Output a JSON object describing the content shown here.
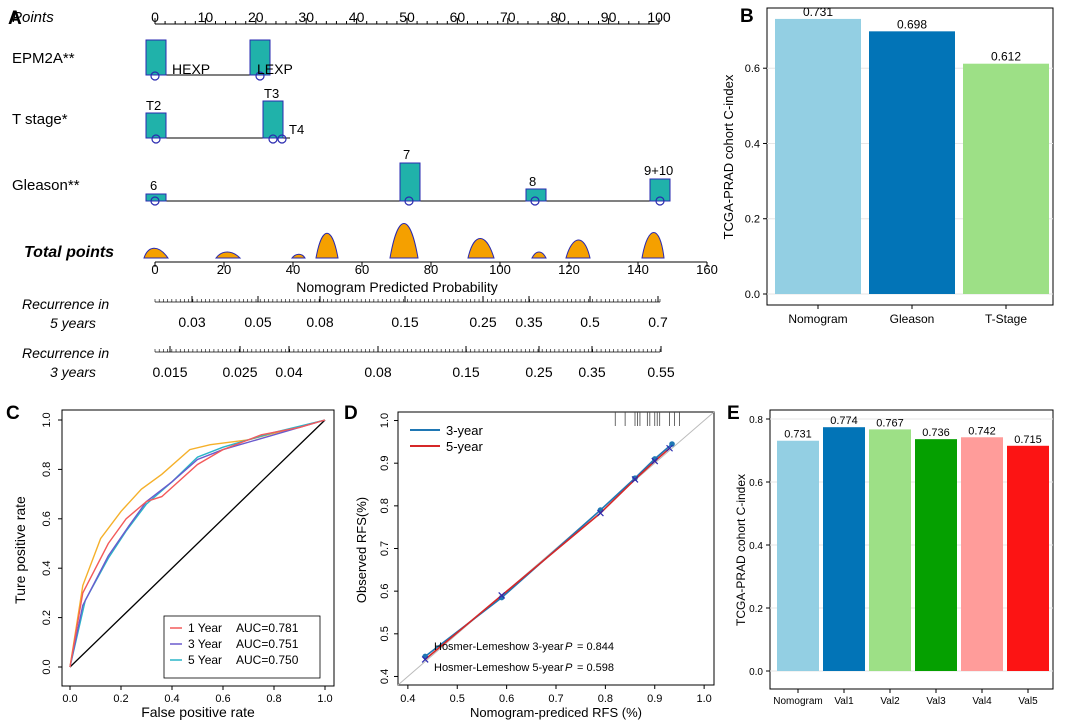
{
  "panel_labels": {
    "a": "A",
    "b": "B",
    "c": "C",
    "d": "D",
    "e": "E"
  },
  "colors": {
    "teal": "#20b2aa",
    "navy": "#2a2ab0",
    "orange": "#f5a000",
    "light_blue": "#93cfe3",
    "blue": "#0274b7",
    "light_green": "#9de086",
    "green": "#05a000",
    "pink": "#ff9c9a",
    "red": "#fc1414",
    "roc_1y": "#f35a5a",
    "roc_3y": "#6a5acd",
    "roc_5y": "#2ab5c8",
    "roc_orange": "#f5b02a",
    "cal_3y": "#1f77b4",
    "cal_5y": "#d62728"
  },
  "nomogram": {
    "points_label": "Points",
    "points_ticks": [
      "0",
      "10",
      "20",
      "30",
      "40",
      "50",
      "60",
      "70",
      "80",
      "90",
      "100"
    ],
    "epm2a": {
      "label": "EPM2A**",
      "levels": [
        "HEXP",
        "LEXP"
      ]
    },
    "tstage": {
      "label": "T stage*",
      "levels": [
        "T2",
        "T3",
        "T4"
      ]
    },
    "gleason": {
      "label": "Gleason**",
      "levels": [
        "6",
        "7",
        "8",
        "9+10"
      ]
    },
    "total_label": "Total points",
    "total_ticks": [
      "0",
      "20",
      "40",
      "60",
      "80",
      "100",
      "120",
      "140",
      "160"
    ],
    "prob_label": "Nomogram Predicted Probability",
    "rec5": {
      "label_line1": "Recurrence in",
      "label_line2": "5 years",
      "ticks": [
        "0.03",
        "0.05",
        "0.08",
        "0.15",
        "0.25",
        "0.35",
        "0.5",
        "0.7"
      ]
    },
    "rec3": {
      "label_line1": "Recurrence in",
      "label_line2": "3 years",
      "ticks": [
        "0.015",
        "0.025",
        "0.04",
        "0.08",
        "0.15",
        "0.25",
        "0.35",
        "0.55"
      ]
    }
  },
  "chart_data": [
    {
      "panel": "A",
      "type": "nomogram",
      "variables": [
        {
          "name": "EPM2A**",
          "levels": [
            {
              "level": "HEXP",
              "points": 0
            },
            {
              "level": "LEXP",
              "points": 21
            }
          ]
        },
        {
          "name": "T stage*",
          "levels": [
            {
              "level": "T2",
              "points": 0
            },
            {
              "level": "T3",
              "points": 23
            },
            {
              "level": "T4",
              "points": 25
            }
          ]
        },
        {
          "name": "Gleason**",
          "levels": [
            {
              "level": "6",
              "points": 0
            },
            {
              "level": "7",
              "points": 50
            },
            {
              "level": "8",
              "points": 75
            },
            {
              "level": "9+10",
              "points": 100
            }
          ]
        }
      ],
      "points_range": [
        0,
        100
      ],
      "total_points_range": [
        0,
        160
      ]
    },
    {
      "panel": "B",
      "type": "bar",
      "categories": [
        "Nomogram",
        "Gleason",
        "T-Stage"
      ],
      "values": [
        0.731,
        0.698,
        0.612
      ],
      "value_labels": [
        "0.731",
        "0.698",
        "0.612"
      ],
      "ylabel": "TCGA-PRAD cohort C-index",
      "yticks": [
        "0.0",
        "0.2",
        "0.4",
        "0.6"
      ],
      "ylim": [
        0,
        0.76
      ]
    },
    {
      "panel": "C",
      "type": "line",
      "xlabel": "False positive rate",
      "ylabel": "Ture positive rate",
      "ticks": [
        "0.0",
        "0.2",
        "0.4",
        "0.6",
        "0.8",
        "1.0"
      ],
      "series": [
        {
          "name": "1 Year",
          "auc": "AUC=0.781",
          "points": [
            [
              0,
              0
            ],
            [
              0.05,
              0.3
            ],
            [
              0.15,
              0.5
            ],
            [
              0.22,
              0.6
            ],
            [
              0.3,
              0.67
            ],
            [
              0.36,
              0.69
            ],
            [
              0.5,
              0.82
            ],
            [
              0.6,
              0.88
            ],
            [
              0.75,
              0.94
            ],
            [
              0.9,
              0.97
            ],
            [
              1,
              1
            ]
          ]
        },
        {
          "name": "3 Year",
          "auc": "AUC=0.751",
          "points": [
            [
              0,
              0
            ],
            [
              0.05,
              0.25
            ],
            [
              0.15,
              0.45
            ],
            [
              0.23,
              0.57
            ],
            [
              0.3,
              0.67
            ],
            [
              0.4,
              0.75
            ],
            [
              0.5,
              0.84
            ],
            [
              0.6,
              0.88
            ],
            [
              0.8,
              0.94
            ],
            [
              1,
              1
            ]
          ]
        },
        {
          "name": "5 Year",
          "auc": "AUC=0.750",
          "points": [
            [
              0,
              0
            ],
            [
              0.06,
              0.27
            ],
            [
              0.15,
              0.44
            ],
            [
              0.22,
              0.55
            ],
            [
              0.3,
              0.66
            ],
            [
              0.4,
              0.75
            ],
            [
              0.5,
              0.85
            ],
            [
              0.6,
              0.89
            ],
            [
              0.8,
              0.95
            ],
            [
              1,
              1
            ]
          ]
        },
        {
          "name": "",
          "auc": "",
          "points": [
            [
              0,
              0
            ],
            [
              0.05,
              0.33
            ],
            [
              0.12,
              0.52
            ],
            [
              0.2,
              0.63
            ],
            [
              0.28,
              0.72
            ],
            [
              0.36,
              0.78
            ],
            [
              0.47,
              0.88
            ],
            [
              0.55,
              0.9
            ],
            [
              0.7,
              0.92
            ],
            [
              0.85,
              0.96
            ],
            [
              1,
              1
            ]
          ]
        }
      ],
      "legend_entries": [
        {
          "name": "1 Year",
          "auc": "AUC=0.781"
        },
        {
          "name": "3 Year",
          "auc": "AUC=0.751"
        },
        {
          "name": "5 Year",
          "auc": "AUC=0.750"
        }
      ]
    },
    {
      "panel": "D",
      "type": "line",
      "xlabel": "Nomogram-prediced RFS (%)",
      "ylabel": "Observed  RFS(%)",
      "xticks": [
        "0.4",
        "0.5",
        "0.6",
        "0.7",
        "0.8",
        "0.9",
        "1.0"
      ],
      "yticks": [
        "0.4",
        "0.5",
        "0.6",
        "0.7",
        "0.8",
        "0.9",
        "1.0"
      ],
      "xlim": [
        0.38,
        1.02
      ],
      "ylim": [
        0.38,
        1.02
      ],
      "series": [
        {
          "name": "3-year",
          "points": [
            [
              0.435,
              0.447
            ],
            [
              0.59,
              0.585
            ],
            [
              0.79,
              0.79
            ],
            [
              0.86,
              0.865
            ],
            [
              0.9,
              0.91
            ],
            [
              0.935,
              0.945
            ]
          ]
        },
        {
          "name": "5-year",
          "points": [
            [
              0.435,
              0.44
            ],
            [
              0.59,
              0.59
            ],
            [
              0.79,
              0.783
            ],
            [
              0.86,
              0.862
            ],
            [
              0.9,
              0.905
            ],
            [
              0.93,
              0.935
            ]
          ]
        }
      ],
      "rug": [
        0.82,
        0.84,
        0.86,
        0.865,
        0.87,
        0.885,
        0.89,
        0.9,
        0.905,
        0.91,
        0.93,
        0.94,
        0.95
      ],
      "hl_3year_prefix": "Hosmer-Lemeshow 3-year",
      "hl_5year_prefix": "Hosmer-Lemeshow 5-year",
      "p_symbol": "P",
      "hl_3year_value": "= 0.844",
      "hl_5year_value": "= 0.598"
    },
    {
      "panel": "E",
      "type": "bar",
      "categories": [
        "Nomogram",
        "Val1",
        "Val2",
        "Val3",
        "Val4",
        "Val5"
      ],
      "values": [
        0.731,
        0.774,
        0.767,
        0.736,
        0.742,
        0.715
      ],
      "value_labels": [
        "0.731",
        "0.774",
        "0.767",
        "0.736",
        "0.742",
        "0.715"
      ],
      "ylabel": "TCGA-PRAD cohort C-index",
      "yticks": [
        "0.0",
        "0.2",
        "0.4",
        "0.6",
        "0.8"
      ],
      "ylim": [
        0,
        0.8
      ]
    }
  ]
}
